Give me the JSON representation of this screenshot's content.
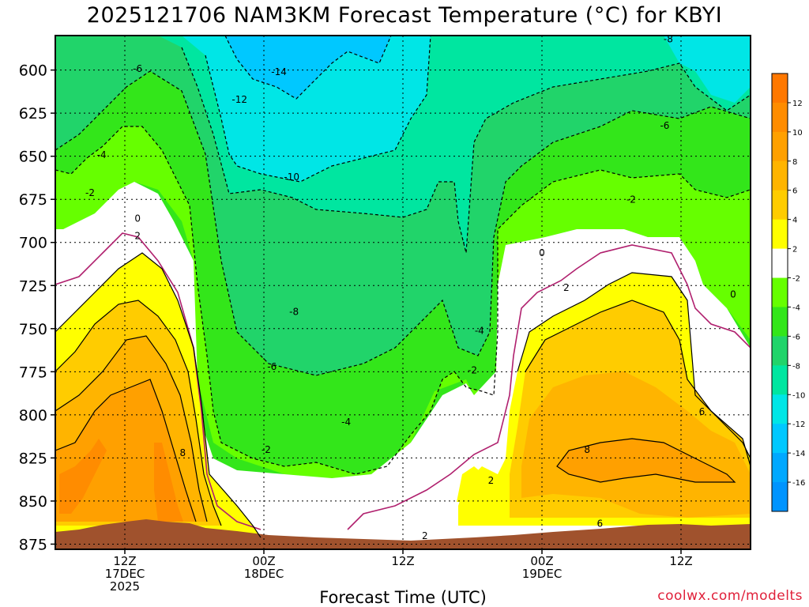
{
  "title": "2025121706 NAM3KM Forecast Temperature (°C) for KBYI",
  "xlabel": "Forecast Time (UTC)",
  "credit": "coolwx.com/modelts",
  "chart_data": {
    "type": "heatmap",
    "title": "2025121706 NAM3KM Forecast Temperature (°C) for KBYI",
    "xlabel": "Forecast Time (UTC)",
    "ylabel": "",
    "y_ticks": [
      600,
      625,
      650,
      675,
      700,
      725,
      750,
      775,
      800,
      825,
      850,
      875
    ],
    "ylim": [
      878,
      580
    ],
    "x_ticks": [
      {
        "hour": 6,
        "lines": [
          "12Z",
          "17DEC",
          "2025"
        ]
      },
      {
        "hour": 18,
        "lines": [
          "00Z",
          "18DEC"
        ]
      },
      {
        "hour": 30,
        "lines": [
          "12Z"
        ]
      },
      {
        "hour": 42,
        "lines": [
          "00Z",
          "19DEC"
        ]
      },
      {
        "hour": 54,
        "lines": [
          "12Z"
        ]
      }
    ],
    "xlim": [
      0,
      60
    ],
    "grid": true,
    "colorbar": {
      "labels": [
        12,
        10,
        8,
        6,
        4,
        2,
        -2,
        -4,
        -6,
        -8,
        -10,
        -12,
        -14,
        -16
      ],
      "colors": [
        "#ff7800",
        "#ff8c00",
        "#ffa000",
        "#ffb400",
        "#ffcc00",
        "#ffff00",
        "#ffffff",
        "#66ff00",
        "#33e61a",
        "#21d46a",
        "#00e6a0",
        "#00e6e6",
        "#00c8ff",
        "#00a8ff",
        "#0094ff"
      ]
    },
    "contour_labels": [
      {
        "text": "-14",
        "hour": 19.3,
        "p": 603
      },
      {
        "text": "-12",
        "hour": 15.9,
        "p": 619
      },
      {
        "text": "-6",
        "hour": 7.1,
        "p": 601
      },
      {
        "text": "-4",
        "hour": 4.0,
        "p": 651
      },
      {
        "text": "-2",
        "hour": 3.0,
        "p": 673
      },
      {
        "text": "0",
        "hour": 7.1,
        "p": 688
      },
      {
        "text": "2",
        "hour": 7.1,
        "p": 698
      },
      {
        "text": "-10",
        "hour": 20.4,
        "p": 664
      },
      {
        "text": "-8",
        "hour": 20.6,
        "p": 742
      },
      {
        "text": "-6",
        "hour": 18.7,
        "p": 774
      },
      {
        "text": "-4",
        "hour": 25.1,
        "p": 806
      },
      {
        "text": "-2",
        "hour": 18.2,
        "p": 822
      },
      {
        "text": "8",
        "hour": 11.0,
        "p": 824
      },
      {
        "text": "-4",
        "hour": 36.6,
        "p": 753
      },
      {
        "text": "-2",
        "hour": 36.0,
        "p": 776
      },
      {
        "text": "2",
        "hour": 37.6,
        "p": 840
      },
      {
        "text": "2",
        "hour": 31.9,
        "p": 872
      },
      {
        "text": "0",
        "hour": 42.0,
        "p": 708
      },
      {
        "text": "2",
        "hour": 44.1,
        "p": 728
      },
      {
        "text": "-2",
        "hour": 49.7,
        "p": 677
      },
      {
        "text": "-6",
        "hour": 52.6,
        "p": 634
      },
      {
        "text": "-8",
        "hour": 52.9,
        "p": 584
      },
      {
        "text": "0",
        "hour": 58.5,
        "p": 732
      },
      {
        "text": "6",
        "hour": 55.8,
        "p": 800
      },
      {
        "text": "8",
        "hour": 45.9,
        "p": 822
      },
      {
        "text": "6",
        "hour": 47.0,
        "p": 865
      }
    ]
  }
}
